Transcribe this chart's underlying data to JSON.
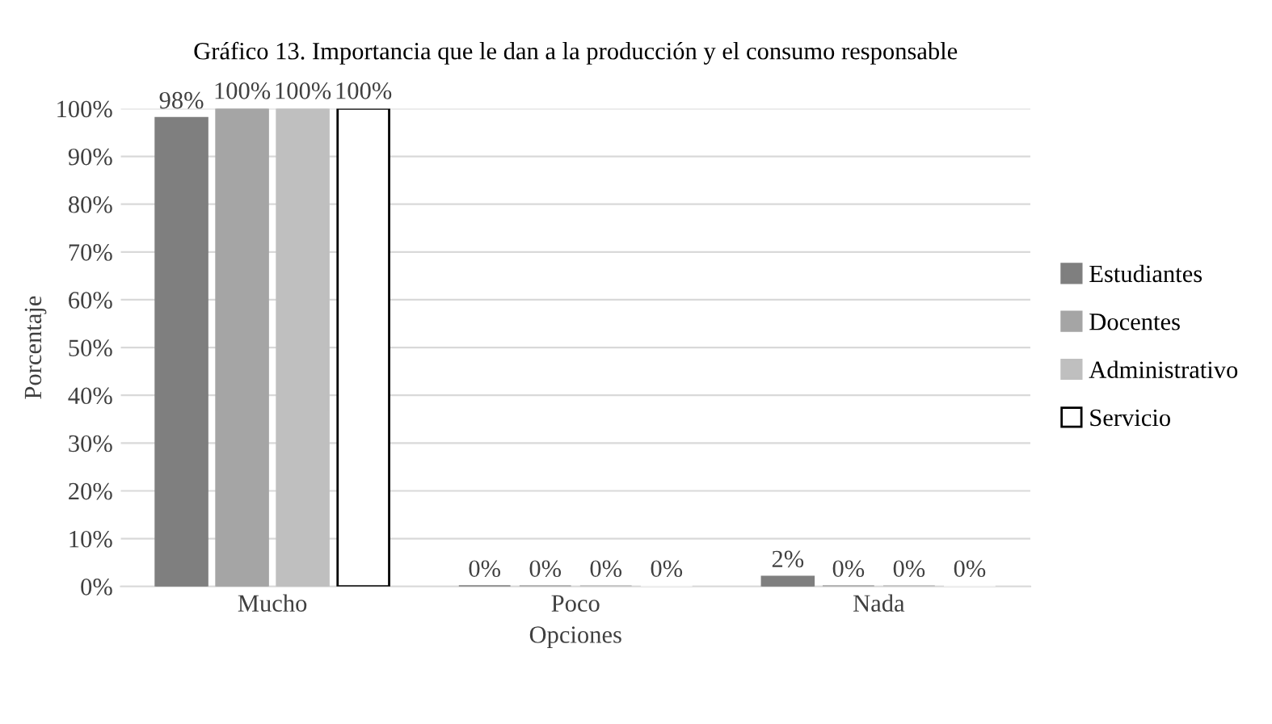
{
  "chart_data": {
    "type": "bar",
    "title": "Gráfico 13. Importancia que le dan a la producción y el consumo responsable",
    "xlabel": "Opciones",
    "ylabel": "Porcentaje",
    "categories": [
      "Mucho",
      "Poco",
      "Nada"
    ],
    "series": [
      {
        "name": "Estudiantes",
        "color": "#7f7f7f",
        "values": [
          98,
          0,
          2
        ],
        "value_labels": [
          "98%",
          "0%",
          "2%"
        ]
      },
      {
        "name": "Docentes",
        "color": "#a5a5a5",
        "values": [
          100,
          0,
          0
        ],
        "value_labels": [
          "100%",
          "0%",
          "0%"
        ]
      },
      {
        "name": "Administrativo",
        "color": "#bfbfbf",
        "values": [
          100,
          0,
          0
        ],
        "value_labels": [
          "100%",
          "0%",
          "0%"
        ]
      },
      {
        "name": "Servicio",
        "color": "#ffffff",
        "values": [
          100,
          0,
          0
        ],
        "value_labels": [
          "100%",
          "0%",
          "0%"
        ]
      }
    ],
    "ylim": [
      0,
      100
    ],
    "yticks": [
      {
        "value": 0,
        "label": "0%"
      },
      {
        "value": 10,
        "label": "10%"
      },
      {
        "value": 20,
        "label": "20%"
      },
      {
        "value": 30,
        "label": "30%"
      },
      {
        "value": 40,
        "label": "40%"
      },
      {
        "value": 50,
        "label": "50%"
      },
      {
        "value": 60,
        "label": "60%"
      },
      {
        "value": 70,
        "label": "70%"
      },
      {
        "value": 80,
        "label": "80%"
      },
      {
        "value": 90,
        "label": "90%"
      },
      {
        "value": 100,
        "label": "100%"
      }
    ],
    "grid": "y",
    "legend": "right"
  }
}
